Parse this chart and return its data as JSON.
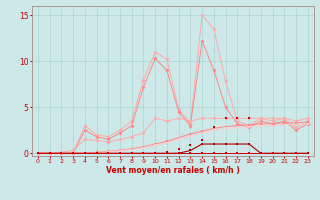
{
  "xlabel": "Vent moyen/en rafales ( km/h )",
  "background_color": "#cce8e8",
  "grid_color": "#aad4d4",
  "x_ticks": [
    0,
    1,
    2,
    3,
    4,
    5,
    6,
    7,
    8,
    9,
    10,
    11,
    12,
    13,
    14,
    15,
    16,
    17,
    18,
    19,
    20,
    21,
    22,
    23
  ],
  "ylim": [
    -0.3,
    16
  ],
  "yticks": [
    0,
    5,
    10,
    15
  ],
  "line_spiky1_y": [
    0,
    0,
    0,
    0,
    3.0,
    2.0,
    1.8,
    2.5,
    3.5,
    8.0,
    11.0,
    10.2,
    4.8,
    3.2,
    15.0,
    13.5,
    7.8,
    3.5,
    3.0,
    3.8,
    3.5,
    3.8,
    2.8,
    3.5
  ],
  "line_spiky1_color": "#ffaaaa",
  "line_spiky2_y": [
    0,
    0,
    0,
    0,
    2.5,
    1.8,
    1.5,
    2.2,
    3.0,
    7.2,
    10.3,
    9.0,
    4.5,
    3.0,
    12.2,
    9.0,
    5.0,
    3.2,
    2.8,
    3.5,
    3.2,
    3.5,
    2.5,
    3.2
  ],
  "line_spiky2_color": "#ff8888",
  "line_medium_y": [
    0,
    0,
    0.1,
    0.3,
    1.5,
    1.4,
    1.2,
    1.5,
    1.8,
    2.2,
    3.8,
    3.5,
    3.8,
    3.5,
    3.8,
    3.8,
    3.8,
    3.8,
    3.8,
    3.8,
    3.8,
    3.8,
    3.5,
    3.8
  ],
  "line_medium_color": "#ffaaaa",
  "line_grow1_y": [
    0,
    0,
    0,
    0,
    0,
    0.1,
    0.2,
    0.3,
    0.5,
    0.7,
    1.0,
    1.3,
    1.7,
    2.1,
    2.4,
    2.7,
    2.9,
    3.0,
    3.1,
    3.2,
    3.2,
    3.3,
    3.3,
    3.4
  ],
  "line_grow1_color": "#ff8888",
  "line_grow2_y": [
    0,
    0,
    0,
    0,
    0,
    0.05,
    0.15,
    0.25,
    0.4,
    0.6,
    0.9,
    1.1,
    1.5,
    1.9,
    2.2,
    2.5,
    2.7,
    2.8,
    2.9,
    3.0,
    3.0,
    3.1,
    3.1,
    3.2
  ],
  "line_grow2_color": "#ffcccc",
  "line_dark_y": [
    0,
    0,
    0,
    0,
    0,
    0,
    0,
    0,
    0,
    0,
    0,
    0,
    0,
    0.3,
    1.0,
    1.0,
    1.0,
    1.0,
    1.0,
    0,
    0,
    0,
    0,
    0
  ],
  "line_dark_color": "#aa0000",
  "line_flat_y": [
    0,
    0,
    0,
    0,
    0,
    0,
    0,
    0,
    0,
    0,
    0,
    0,
    0,
    0,
    0,
    0,
    0,
    0,
    0,
    0,
    0,
    0,
    0,
    0
  ],
  "line_flat_color": "#cc0000",
  "marker_red_y": [
    0,
    0,
    0,
    0,
    0,
    0,
    0,
    0,
    0,
    0,
    0,
    0.1,
    0.5,
    0.9,
    1.4,
    2.8,
    3.8,
    3.8,
    3.8,
    0.0,
    0,
    0,
    0,
    0
  ],
  "marker_red_color": "#cc0000"
}
